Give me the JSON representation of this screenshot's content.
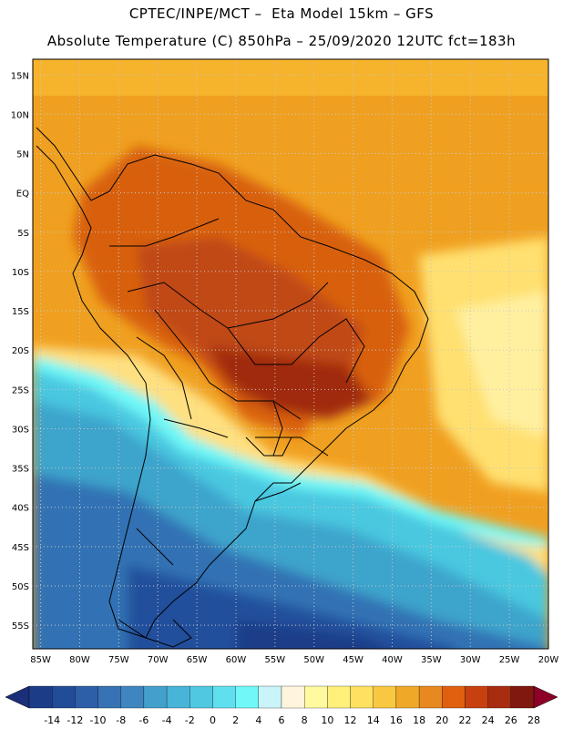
{
  "header": {
    "line1": "CPTEC/INPE/MCT –  Eta Model 15km – GFS",
    "line2": "Absolute Temperature (C) 850hPa – 25/09/2020 12UTC fct=183h"
  },
  "map": {
    "lat_labels": [
      "15N",
      "10N",
      "5N",
      "EQ",
      "5S",
      "10S",
      "15S",
      "20S",
      "25S",
      "30S",
      "35S",
      "40S",
      "45S",
      "50S",
      "55S"
    ],
    "lon_labels": [
      "85W",
      "80W",
      "75W",
      "70W",
      "65W",
      "60W",
      "55W",
      "50W",
      "45W",
      "40W",
      "35W",
      "30W",
      "25W",
      "20W"
    ],
    "lat_range": [
      17,
      -58
    ],
    "lon_range": [
      -86,
      -20
    ],
    "colors": {
      "ocean_warm": "#f0a020",
      "land_hot": "#c85010",
      "core_hot": "#a03010",
      "south_cool": "#40c0e0",
      "south_cold": "#3060b0",
      "border": "#000000",
      "grid": "#c8c8c8"
    }
  },
  "colorbar": {
    "labels": [
      "-14",
      "-12",
      "-10",
      "-8",
      "-6",
      "-4",
      "-2",
      "0",
      "2",
      "4",
      "6",
      "8",
      "10",
      "12",
      "14",
      "16",
      "18",
      "20",
      "22",
      "24",
      "26",
      "28"
    ],
    "colors": [
      "#1c3c88",
      "#214c98",
      "#2d5ea8",
      "#3772b4",
      "#3f86c0",
      "#43a0cc",
      "#48b4d8",
      "#50c8e2",
      "#60e0ee",
      "#70f8f8",
      "#c8f4fa",
      "#fff4dc",
      "#fffaa0",
      "#fff07a",
      "#ffe060",
      "#f8c840",
      "#f0a828",
      "#e88820",
      "#e06010",
      "#c84010",
      "#a82c10",
      "#801810"
    ],
    "low_color": "#1a2f78",
    "high_color": "#8c0028"
  }
}
